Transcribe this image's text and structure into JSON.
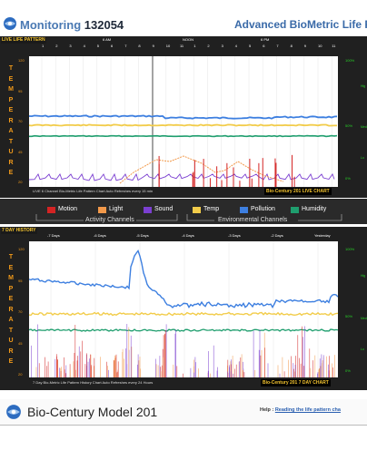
{
  "header": {
    "title_prefix": "Monitoring",
    "title_id": "132054",
    "title_right": "Advanced BioMetric Life Patt"
  },
  "live": {
    "label": "LIVE LIFE PATTERN",
    "hours": [
      "1",
      "2",
      "3",
      "4",
      "5",
      "6",
      "7",
      "8",
      "9",
      "10",
      "11",
      "1",
      "2",
      "3",
      "4",
      "5",
      "6",
      "7",
      "8",
      "9",
      "10",
      "11"
    ],
    "markers": [
      "6 AM",
      "NOON",
      "6 PM"
    ],
    "vertical_letters": [
      "T",
      "E",
      "M",
      "P",
      "E",
      "R",
      "A",
      "T",
      "U",
      "R",
      "E"
    ],
    "y_left": [
      "120",
      "95",
      "70",
      "45",
      "20"
    ],
    "y_right": [
      "100%",
      "50%",
      "0%"
    ],
    "y_right_aux": [
      "Hig",
      "Med",
      "Lo"
    ],
    "footnote": "LIVE 6 Channel Bio-Metric Life Pattern Chart Auto Refreshes every 15 min",
    "badge": "Bio-Century 201 LIVE CHART"
  },
  "legend": {
    "channels": [
      {
        "name": "Motion",
        "color": "#d42323"
      },
      {
        "name": "Light",
        "color": "#f2994a"
      },
      {
        "name": "Sound",
        "color": "#7b3fd1"
      },
      {
        "name": "Temp",
        "color": "#f2cc4a"
      },
      {
        "name": "Pollution",
        "color": "#3d7fe0"
      },
      {
        "name": "Humidity",
        "color": "#1f9e6e"
      }
    ],
    "group_activity": "Activity Channels",
    "group_env": "Environmental Channels"
  },
  "history": {
    "label": "7 DAY HISTORY",
    "days": [
      "-7 Days",
      "-6 Days",
      "-5 Days",
      "-4 Days",
      "-3 Days",
      "-2 Days",
      "Yesterday"
    ],
    "vertical_letters": [
      "T",
      "E",
      "M",
      "P",
      "E",
      "R",
      "A",
      "T",
      "U",
      "R",
      "E"
    ],
    "y_left": [
      "120",
      "95",
      "70",
      "45",
      "20"
    ],
    "y_right": [
      "100%",
      "50%",
      "0%"
    ],
    "y_right_aux": [
      "Hig",
      "Med",
      "Lo"
    ],
    "footnote": "7 Day Bio-Metric Life Pattern History Chart Auto Refreshes every 24 Hours",
    "badge": "Bio-Century 201 7 DAY CHART"
  },
  "footer": {
    "model": "Bio-Century Model 201",
    "help_label": "Help :",
    "help_link": "Reading the life pattern cha"
  },
  "colors": {
    "temp": "#f2cc4a",
    "pollution": "#3d7fe0",
    "humidity": "#1f9e6e",
    "motion": "#d42323",
    "light": "#f2994a",
    "sound": "#7b3fd1"
  }
}
